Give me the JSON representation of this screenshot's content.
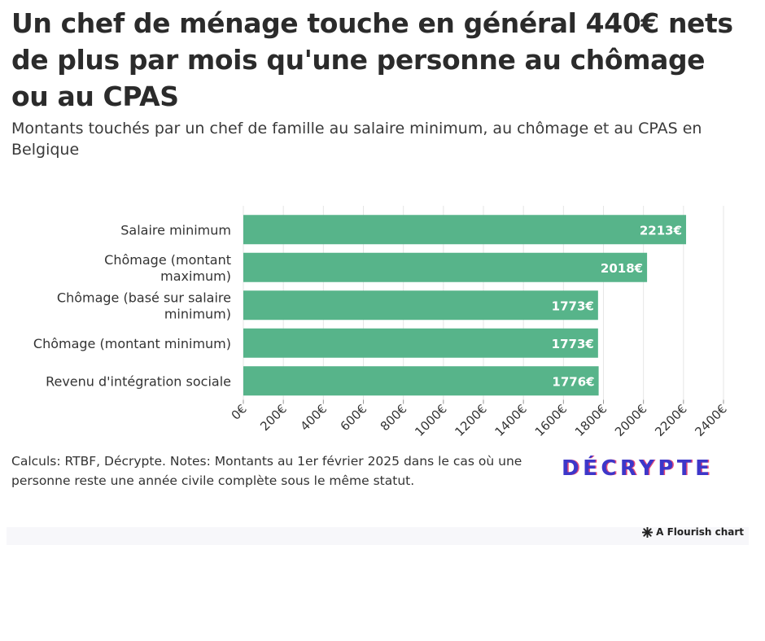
{
  "header": {
    "title": "Un chef de ménage touche en général 440€ nets de plus par mois qu'une personne au chômage ou au CPAS",
    "subtitle": "Montants touchés par un chef de famille au salaire minimum, au chômage et au CPAS en Belgique"
  },
  "footer": {
    "note": "Calculs: RTBF, Décrypte. Notes: Montants au 1er février 2025 dans le cas où une personne reste une année civile complète sous le même statut.",
    "logo": "DÉCRYPTE",
    "credit": "A Flourish chart"
  },
  "colors": {
    "bar": "#57b48a",
    "bar_label": "#ffffff",
    "grid": "#e6e6e6",
    "axis_text": "#333333"
  },
  "chart_data": {
    "type": "bar",
    "orientation": "horizontal",
    "categories": [
      [
        "Salaire minimum"
      ],
      [
        "Chômage (montant",
        "maximum)"
      ],
      [
        "Chômage (basé sur salaire",
        "minimum)"
      ],
      [
        "Chômage (montant minimum)"
      ],
      [
        "Revenu d'intégration sociale"
      ]
    ],
    "values": [
      2213,
      2018,
      1773,
      1773,
      1776
    ],
    "value_labels": [
      "2213€",
      "2018€",
      "1773€",
      "1773€",
      "1776€"
    ],
    "xlim": [
      0,
      2400
    ],
    "ticks": [
      0,
      200,
      400,
      600,
      800,
      1000,
      1200,
      1400,
      1600,
      1800,
      2000,
      2200,
      2400
    ],
    "tick_labels": [
      "0€",
      "200€",
      "400€",
      "600€",
      "800€",
      "1000€",
      "1200€",
      "1400€",
      "1600€",
      "1800€",
      "2000€",
      "2200€",
      "2400€"
    ],
    "grid": true
  }
}
